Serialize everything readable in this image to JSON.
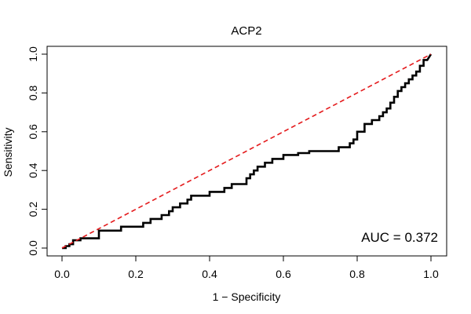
{
  "chart_data": {
    "type": "line",
    "title": "ACP2",
    "xlabel": "1 − Specificity",
    "ylabel": "Sensitivity",
    "xlim": [
      0,
      1
    ],
    "ylim": [
      0,
      1
    ],
    "x_ticks": [
      0.0,
      0.2,
      0.4,
      0.6,
      0.8,
      1.0
    ],
    "x_tick_labels": [
      "0.0",
      "0.2",
      "0.4",
      "0.6",
      "0.8",
      "1.0"
    ],
    "y_ticks": [
      0.0,
      0.2,
      0.4,
      0.6,
      0.8,
      1.0
    ],
    "y_tick_labels": [
      "0.0",
      "0.2",
      "0.4",
      "0.6",
      "0.8",
      "1.0"
    ],
    "grid": false,
    "annotation": "AUC = 0.372",
    "series": [
      {
        "name": "ROC curve",
        "color": "#000000",
        "x": [
          0.0,
          0.01,
          0.01,
          0.02,
          0.02,
          0.03,
          0.03,
          0.05,
          0.05,
          0.1,
          0.1,
          0.16,
          0.16,
          0.22,
          0.22,
          0.24,
          0.24,
          0.27,
          0.27,
          0.29,
          0.29,
          0.3,
          0.3,
          0.32,
          0.32,
          0.34,
          0.34,
          0.35,
          0.35,
          0.4,
          0.4,
          0.44,
          0.44,
          0.46,
          0.46,
          0.5,
          0.5,
          0.51,
          0.51,
          0.52,
          0.52,
          0.53,
          0.53,
          0.55,
          0.55,
          0.57,
          0.57,
          0.6,
          0.6,
          0.64,
          0.64,
          0.67,
          0.67,
          0.75,
          0.75,
          0.78,
          0.78,
          0.79,
          0.79,
          0.8,
          0.8,
          0.82,
          0.82,
          0.84,
          0.84,
          0.86,
          0.86,
          0.87,
          0.87,
          0.88,
          0.88,
          0.89,
          0.89,
          0.9,
          0.9,
          0.91,
          0.91,
          0.92,
          0.92,
          0.93,
          0.93,
          0.94,
          0.94,
          0.95,
          0.95,
          0.96,
          0.96,
          0.97,
          0.97,
          0.98,
          0.98,
          0.99,
          1.0
        ],
        "y": [
          0.0,
          0.0,
          0.01,
          0.01,
          0.02,
          0.02,
          0.04,
          0.04,
          0.05,
          0.05,
          0.09,
          0.09,
          0.11,
          0.11,
          0.13,
          0.13,
          0.15,
          0.15,
          0.17,
          0.17,
          0.19,
          0.19,
          0.21,
          0.21,
          0.23,
          0.23,
          0.25,
          0.25,
          0.27,
          0.27,
          0.29,
          0.29,
          0.31,
          0.31,
          0.33,
          0.33,
          0.36,
          0.36,
          0.38,
          0.38,
          0.4,
          0.4,
          0.42,
          0.42,
          0.44,
          0.44,
          0.46,
          0.46,
          0.48,
          0.48,
          0.49,
          0.49,
          0.5,
          0.5,
          0.52,
          0.52,
          0.54,
          0.54,
          0.56,
          0.56,
          0.6,
          0.6,
          0.64,
          0.64,
          0.66,
          0.66,
          0.68,
          0.68,
          0.7,
          0.7,
          0.72,
          0.72,
          0.75,
          0.75,
          0.78,
          0.78,
          0.81,
          0.81,
          0.83,
          0.83,
          0.85,
          0.85,
          0.87,
          0.87,
          0.89,
          0.89,
          0.91,
          0.91,
          0.94,
          0.94,
          0.97,
          0.97,
          1.0
        ]
      },
      {
        "name": "chance diagonal",
        "color": "#e41a1c",
        "style": "dashed",
        "x": [
          0.0,
          1.0
        ],
        "y": [
          0.0,
          1.0
        ]
      }
    ]
  }
}
